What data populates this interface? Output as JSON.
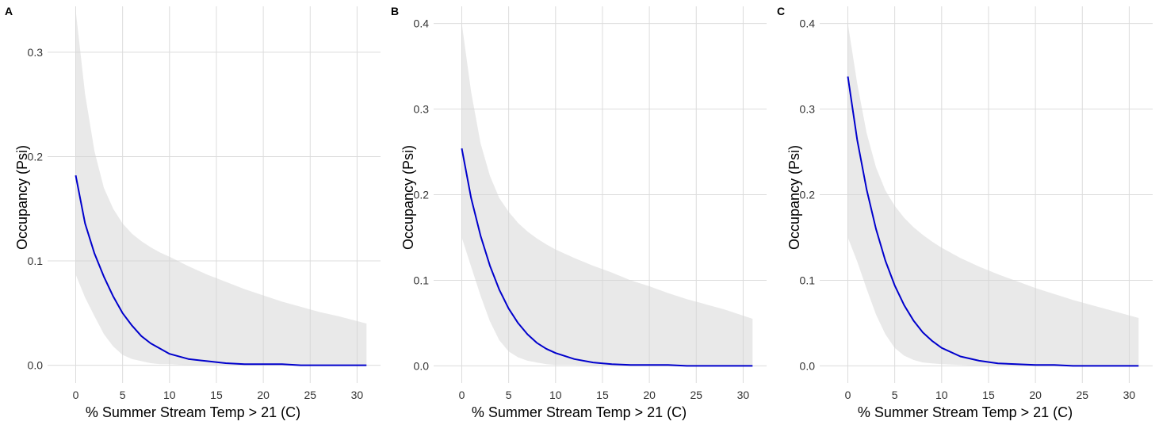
{
  "chart_data": [
    {
      "type": "line",
      "panel_label": "A",
      "xlabel": "% Summer Stream Temp > 21 (C)",
      "ylabel": "Occupancy (Psi)",
      "xlim": [
        -3,
        32.5
      ],
      "ylim": [
        -0.017,
        0.344
      ],
      "xticks": [
        0,
        5,
        10,
        15,
        20,
        25,
        30
      ],
      "yticks": [
        0.0,
        0.1,
        0.2,
        0.3
      ],
      "ytick_labels": [
        "0.0",
        "0.1",
        "0.2",
        "0.3"
      ],
      "grid": true,
      "series": [
        {
          "color": "#0000cc",
          "x": [
            0,
            1,
            2,
            3,
            4,
            5,
            6,
            7,
            8,
            9,
            10,
            12,
            14,
            16,
            18,
            20,
            22,
            24,
            26,
            28,
            31
          ],
          "y": [
            0.182,
            0.136,
            0.107,
            0.085,
            0.066,
            0.05,
            0.038,
            0.028,
            0.021,
            0.016,
            0.011,
            0.006,
            0.004,
            0.002,
            0.001,
            0.001,
            0.001,
            0.0,
            0.0,
            0.0,
            0.0
          ],
          "lower": [
            0.087,
            0.065,
            0.047,
            0.03,
            0.018,
            0.01,
            0.006,
            0.004,
            0.002,
            0.001,
            0.001,
            0.0,
            0.0,
            0.0,
            0.0,
            0.0,
            0.0,
            0.0,
            0.0,
            0.0,
            0.0
          ],
          "upper": [
            0.34,
            0.26,
            0.205,
            0.17,
            0.15,
            0.136,
            0.126,
            0.119,
            0.113,
            0.108,
            0.104,
            0.095,
            0.087,
            0.08,
            0.073,
            0.067,
            0.061,
            0.056,
            0.051,
            0.047,
            0.04
          ]
        }
      ]
    },
    {
      "type": "line",
      "panel_label": "B",
      "xlabel": "% Summer Stream Temp > 21 (C)",
      "ylabel": "Occupancy (Psi)",
      "xlim": [
        -3,
        32.5
      ],
      "ylim": [
        -0.02,
        0.42
      ],
      "xticks": [
        0,
        5,
        10,
        15,
        20,
        25,
        30
      ],
      "yticks": [
        0.0,
        0.1,
        0.2,
        0.3,
        0.4
      ],
      "ytick_labels": [
        "0.0",
        "0.1",
        "0.2",
        "0.3",
        "0.4"
      ],
      "grid": true,
      "series": [
        {
          "color": "#0000cc",
          "x": [
            0,
            1,
            2,
            3,
            4,
            5,
            6,
            7,
            8,
            9,
            10,
            12,
            14,
            16,
            18,
            20,
            22,
            24,
            26,
            28,
            31
          ],
          "y": [
            0.254,
            0.196,
            0.152,
            0.117,
            0.089,
            0.067,
            0.05,
            0.037,
            0.027,
            0.02,
            0.015,
            0.008,
            0.004,
            0.002,
            0.001,
            0.001,
            0.001,
            0.0,
            0.0,
            0.0,
            0.0
          ],
          "lower": [
            0.15,
            0.116,
            0.082,
            0.052,
            0.03,
            0.017,
            0.01,
            0.006,
            0.004,
            0.002,
            0.001,
            0.001,
            0.0,
            0.0,
            0.0,
            0.0,
            0.0,
            0.0,
            0.0,
            0.0,
            0.0
          ],
          "upper": [
            0.4,
            0.32,
            0.26,
            0.222,
            0.196,
            0.18,
            0.167,
            0.157,
            0.149,
            0.142,
            0.136,
            0.126,
            0.117,
            0.109,
            0.1,
            0.093,
            0.085,
            0.078,
            0.072,
            0.066,
            0.055
          ]
        }
      ]
    },
    {
      "type": "line",
      "panel_label": "C",
      "xlabel": "% Summer Stream Temp > 21 (C)",
      "ylabel": "Occupancy (Psi)",
      "xlim": [
        -3,
        32.5
      ],
      "ylim": [
        -0.02,
        0.42
      ],
      "xticks": [
        0,
        5,
        10,
        15,
        20,
        25,
        30
      ],
      "yticks": [
        0.0,
        0.1,
        0.2,
        0.3,
        0.4
      ],
      "ytick_labels": [
        "0.0",
        "0.1",
        "0.2",
        "0.3",
        "0.4"
      ],
      "grid": true,
      "series": [
        {
          "color": "#0000cc",
          "x": [
            0,
            1,
            2,
            3,
            4,
            5,
            6,
            7,
            8,
            9,
            10,
            12,
            14,
            16,
            18,
            20,
            22,
            24,
            26,
            28,
            31
          ],
          "y": [
            0.338,
            0.264,
            0.206,
            0.16,
            0.123,
            0.094,
            0.071,
            0.053,
            0.039,
            0.029,
            0.021,
            0.011,
            0.006,
            0.003,
            0.002,
            0.001,
            0.001,
            0.0,
            0.0,
            0.0,
            0.0
          ],
          "lower": [
            0.15,
            0.122,
            0.09,
            0.06,
            0.037,
            0.021,
            0.012,
            0.007,
            0.004,
            0.003,
            0.002,
            0.001,
            0.0,
            0.0,
            0.0,
            0.0,
            0.0,
            0.0,
            0.0,
            0.0,
            0.0
          ],
          "upper": [
            0.4,
            0.33,
            0.272,
            0.232,
            0.205,
            0.187,
            0.173,
            0.162,
            0.153,
            0.145,
            0.138,
            0.126,
            0.116,
            0.107,
            0.099,
            0.091,
            0.084,
            0.077,
            0.071,
            0.065,
            0.056
          ]
        }
      ]
    }
  ]
}
